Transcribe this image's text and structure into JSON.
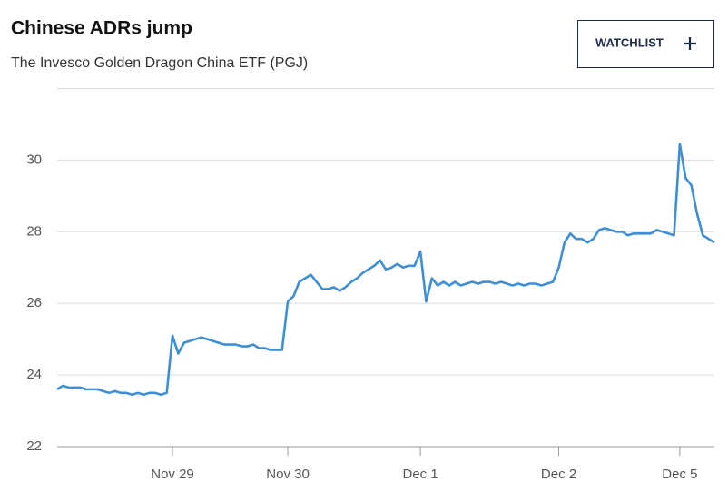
{
  "button": {
    "label": "WATCHLIST"
  },
  "chart_data": {
    "type": "line",
    "title": "Chinese ADRs jump",
    "subtitle": "The Invesco Golden Dragon China ETF (PGJ)",
    "color": "#3f8fd2",
    "grid": true,
    "ylim": [
      22,
      32
    ],
    "yticks": [
      22,
      24,
      26,
      28,
      30
    ],
    "categories": [
      null,
      null,
      null,
      null,
      null,
      null,
      null,
      null,
      null,
      null,
      null,
      null,
      null,
      null,
      null,
      null,
      null,
      null,
      null,
      null,
      "Nov 29",
      null,
      null,
      null,
      null,
      null,
      null,
      null,
      null,
      null,
      null,
      null,
      null,
      null,
      null,
      null,
      null,
      null,
      null,
      null,
      "Nov 30",
      null,
      null,
      null,
      null,
      null,
      null,
      null,
      null,
      null,
      null,
      null,
      null,
      null,
      null,
      null,
      null,
      null,
      null,
      null,
      null,
      null,
      null,
      "Dec 1",
      null,
      null,
      null,
      null,
      null,
      null,
      null,
      null,
      null,
      null,
      null,
      null,
      null,
      null,
      null,
      null,
      null,
      null,
      null,
      null,
      null,
      null,
      null,
      "Dec 2",
      null,
      null,
      null,
      null,
      null,
      null,
      null,
      null,
      null,
      null,
      null,
      null,
      null,
      null,
      null,
      null,
      null,
      null,
      null,
      null,
      "Dec 5",
      null,
      null,
      null,
      null,
      null,
      null
    ],
    "values": [
      23.6,
      23.7,
      23.65,
      23.65,
      23.65,
      23.6,
      23.6,
      23.6,
      23.55,
      23.5,
      23.55,
      23.5,
      23.5,
      23.45,
      23.5,
      23.45,
      23.5,
      23.5,
      23.45,
      23.5,
      25.1,
      24.6,
      24.9,
      24.95,
      25.0,
      25.05,
      25.0,
      24.95,
      24.9,
      24.85,
      24.85,
      24.85,
      24.8,
      24.8,
      24.85,
      24.75,
      24.75,
      24.7,
      24.7,
      24.7,
      26.05,
      26.2,
      26.6,
      26.7,
      26.8,
      26.6,
      26.4,
      26.4,
      26.45,
      26.35,
      26.45,
      26.6,
      26.7,
      26.85,
      26.95,
      27.05,
      27.2,
      26.95,
      27.0,
      27.1,
      27.0,
      27.05,
      27.05,
      27.45,
      26.05,
      26.7,
      26.5,
      26.6,
      26.5,
      26.6,
      26.5,
      26.55,
      26.6,
      26.55,
      26.6,
      26.6,
      26.55,
      26.6,
      26.55,
      26.5,
      26.55,
      26.5,
      26.55,
      26.55,
      26.5,
      26.55,
      26.6,
      27.0,
      27.7,
      27.95,
      27.8,
      27.8,
      27.7,
      27.8,
      28.05,
      28.1,
      28.05,
      28.0,
      28.0,
      27.9,
      27.95,
      27.95,
      27.95,
      27.95,
      28.05,
      28.0,
      27.95,
      27.9,
      30.45,
      29.5,
      29.3,
      28.5,
      27.9,
      27.8,
      27.7
    ]
  }
}
